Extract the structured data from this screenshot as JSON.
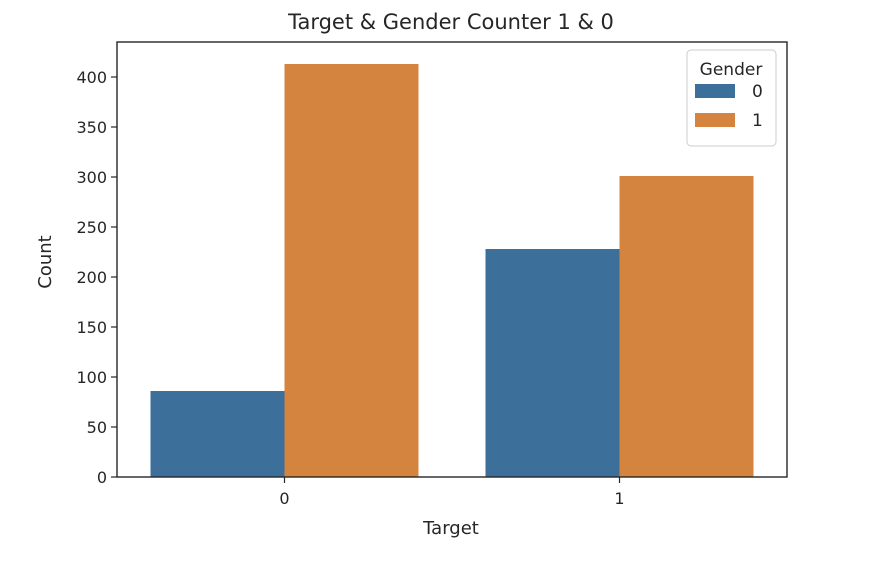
{
  "chart_data": {
    "type": "bar",
    "title": "Target & Gender Counter 1 & 0",
    "xlabel": "Target",
    "ylabel": "Count",
    "categories": [
      "0",
      "1"
    ],
    "series": [
      {
        "name": "0",
        "values": [
          86,
          228
        ],
        "color": "#3c6f9a"
      },
      {
        "name": "1",
        "values": [
          413,
          301
        ],
        "color": "#d5843f"
      }
    ],
    "ylim": [
      0,
      435
    ],
    "yticks": [
      0,
      50,
      100,
      150,
      200,
      250,
      300,
      350,
      400
    ],
    "legend": {
      "title": "Gender",
      "placement": "top-right"
    },
    "grid": false
  }
}
